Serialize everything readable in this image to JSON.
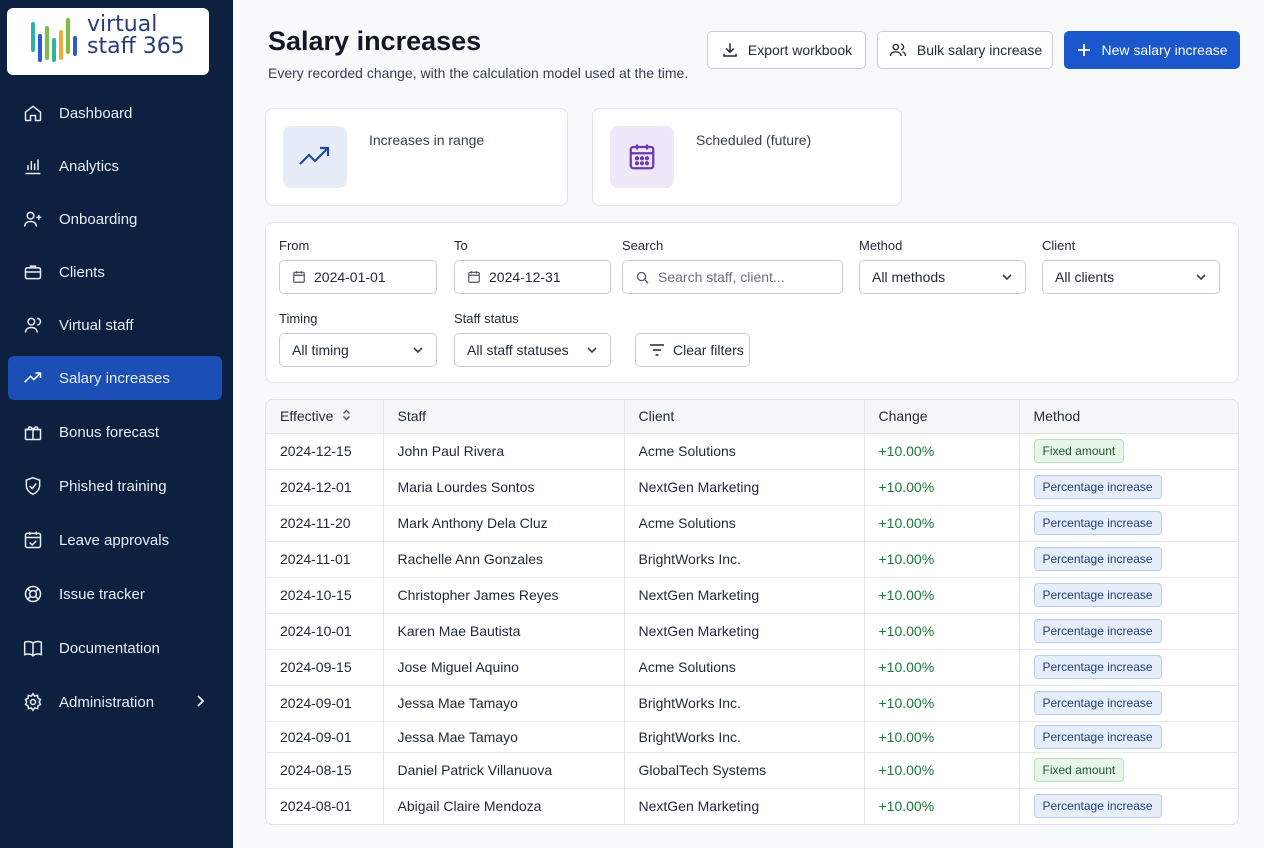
{
  "brand": {
    "line1": "virtual",
    "line2": "staff 365"
  },
  "sidebar": {
    "items": [
      {
        "label": "Dashboard",
        "icon": "home-icon"
      },
      {
        "label": "Analytics",
        "icon": "bar-chart-icon"
      },
      {
        "label": "Onboarding",
        "icon": "user-plus-icon"
      },
      {
        "label": "Clients",
        "icon": "briefcase-icon"
      },
      {
        "label": "Virtual staff",
        "icon": "users-icon"
      },
      {
        "label": "Salary increases",
        "icon": "trending-up-icon",
        "active": true
      },
      {
        "label": "Bonus forecast",
        "icon": "gift-icon"
      },
      {
        "label": "Phished training",
        "icon": "shield-icon"
      },
      {
        "label": "Leave approvals",
        "icon": "calendar-check-icon"
      },
      {
        "label": "Issue tracker",
        "icon": "lifebuoy-icon"
      },
      {
        "label": "Documentation",
        "icon": "book-icon"
      },
      {
        "label": "Administration",
        "icon": "gear-icon"
      }
    ]
  },
  "header": {
    "title": "Salary increases",
    "subtitle": "Every recorded change, with the calculation model used at the time.",
    "export_label": "Export workbook",
    "bulk_label": "Bulk salary increase",
    "new_label": "New salary increase"
  },
  "cards": {
    "range_label": "Increases in range",
    "scheduled_label": "Scheduled (future)"
  },
  "filters": {
    "from_label": "From",
    "from_value": "2024-01-01",
    "to_label": "To",
    "to_value": "2024-12-31",
    "search_label": "Search",
    "search_placeholder": "Search staff, client...",
    "method_label": "Method",
    "method_value": "All methods",
    "client_label": "Client",
    "client_value": "All clients",
    "timing_label": "Timing",
    "timing_value": "All timing",
    "status_label": "Staff status",
    "status_value": "All staff statuses",
    "clear_label": "Clear filters"
  },
  "table": {
    "columns": [
      "Effective",
      "Staff",
      "Client",
      "Change",
      "Method"
    ],
    "rows": [
      {
        "effective": "2024-12-15",
        "staff": "John Paul Rivera",
        "client": "Acme Solutions",
        "change": "+10.00%",
        "method": "Fixed amount",
        "kind": "fixed"
      },
      {
        "effective": "2024-12-01",
        "staff": "Maria Lourdes Sontos",
        "client": "NextGen Marketing",
        "change": "+10.00%",
        "method": "Percentage increase",
        "kind": "pct"
      },
      {
        "effective": "2024-11-20",
        "staff": "Mark Anthony Dela Cluz",
        "client": "Acme Solutions",
        "change": "+10.00%",
        "method": "Percentage increase",
        "kind": "pct"
      },
      {
        "effective": "2024-11-01",
        "staff": "Rachelle Ann Gonzales",
        "client": "BrightWorks Inc.",
        "change": "+10.00%",
        "method": "Percentage increase",
        "kind": "pct"
      },
      {
        "effective": "2024-10-15",
        "staff": "Christopher James Reyes",
        "client": "NextGen Marketing",
        "change": "+10.00%",
        "method": "Percentage increase",
        "kind": "pct"
      },
      {
        "effective": "2024-10-01",
        "staff": "Karen Mae Bautista",
        "client": "NextGen Marketing",
        "change": "+10.00%",
        "method": "Percentage increase",
        "kind": "pct"
      },
      {
        "effective": "2024-09-15",
        "staff": "Jose Miguel Aquino",
        "client": "Acme Solutions",
        "change": "+10.00%",
        "method": "Percentage increase",
        "kind": "pct"
      },
      {
        "effective": "2024-09-01",
        "staff": "Jessa Mae Tamayo",
        "client": "BrightWorks Inc.",
        "change": "+10.00%",
        "method": "Percentage increase",
        "kind": "pct"
      },
      {
        "effective": "2024-09-01",
        "staff": "Jessa Mae Tamayo",
        "client": "BrightWorks Inc.",
        "change": "+10.00%",
        "method": "Percentage increase",
        "kind": "pct"
      },
      {
        "effective": "2024-08-15",
        "staff": "Daniel Patrick Villanuova",
        "client": "GlobalTech Systems",
        "change": "+10.00%",
        "method": "Fixed amount",
        "kind": "fixed"
      },
      {
        "effective": "2024-08-01",
        "staff": "Abigail Claire Mendoza",
        "client": "NextGen Marketing",
        "change": "+10.00%",
        "method": "Percentage increase",
        "kind": "pct"
      }
    ]
  },
  "colors": {
    "sidebar_bg": "#0d2040",
    "active_nav": "#1b4fb5",
    "primary": "#1a56cc",
    "positive": "#1a7a3a"
  }
}
